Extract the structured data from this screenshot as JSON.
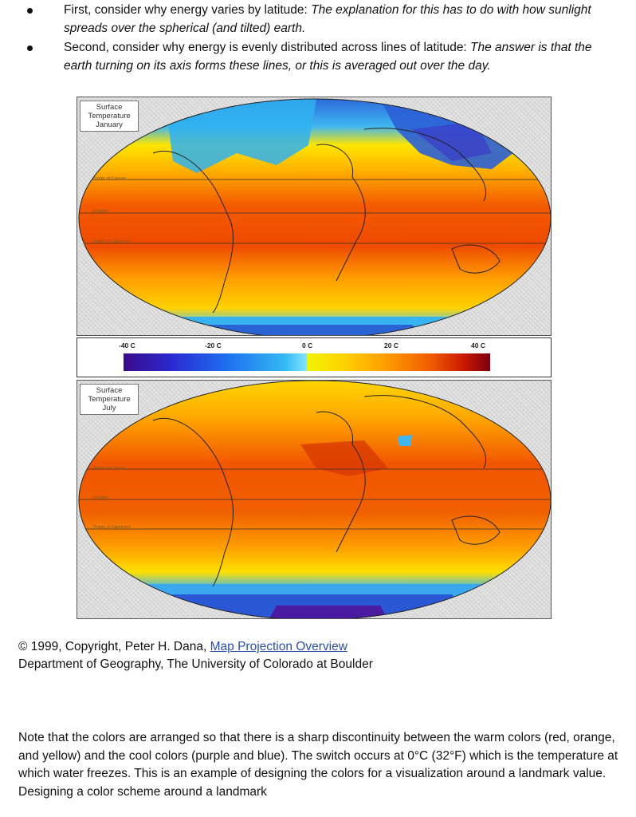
{
  "bullets": [
    {
      "lead": "First, consider why energy varies by latitude: ",
      "italic": "The explanation for this has to do with how sunlight spreads over the spherical (and tilted) earth."
    },
    {
      "lead": "Second, consider why energy is evenly distributed across lines of latitude: ",
      "italic": "The answer is that the earth turning on its axis forms these lines, or this is averaged out over the day."
    }
  ],
  "map_january": {
    "label_lines": [
      "Surface",
      "Temperature",
      "January"
    ],
    "lat_labels": [
      "Tropic of Cancer",
      "Equator",
      "Tropic of Capricorn"
    ]
  },
  "map_july": {
    "label_lines": [
      "Surface",
      "Temperature",
      "July"
    ],
    "lat_labels": [
      "Tropic of Cancer",
      "Equator",
      "Tropic of Capricorn"
    ]
  },
  "colorbar": {
    "ticks": [
      "-40 C",
      "-20 C",
      "0 C",
      "20 C",
      "40 C"
    ]
  },
  "credit": {
    "line1_prefix": "© 1999, Copyright, Peter H. Dana, ",
    "link_text": "Map Projection Overview",
    "line2": "Department of Geography, The University of Colorado at Boulder"
  },
  "note": "Note that the colors are arranged so that there is a sharp discontinuity between the warm colors (red, orange, and yellow) and the cool colors (purple and blue).  The switch occurs at 0°C (32°F) which is the temperature at which water freezes. This is an example of designing the colors for a visualization around a landmark value. Designing a color scheme around a landmark",
  "colors": {
    "link": "#2a4ea8",
    "warm_extreme": "#7a0010",
    "cool_extreme": "#3a0a8a"
  }
}
